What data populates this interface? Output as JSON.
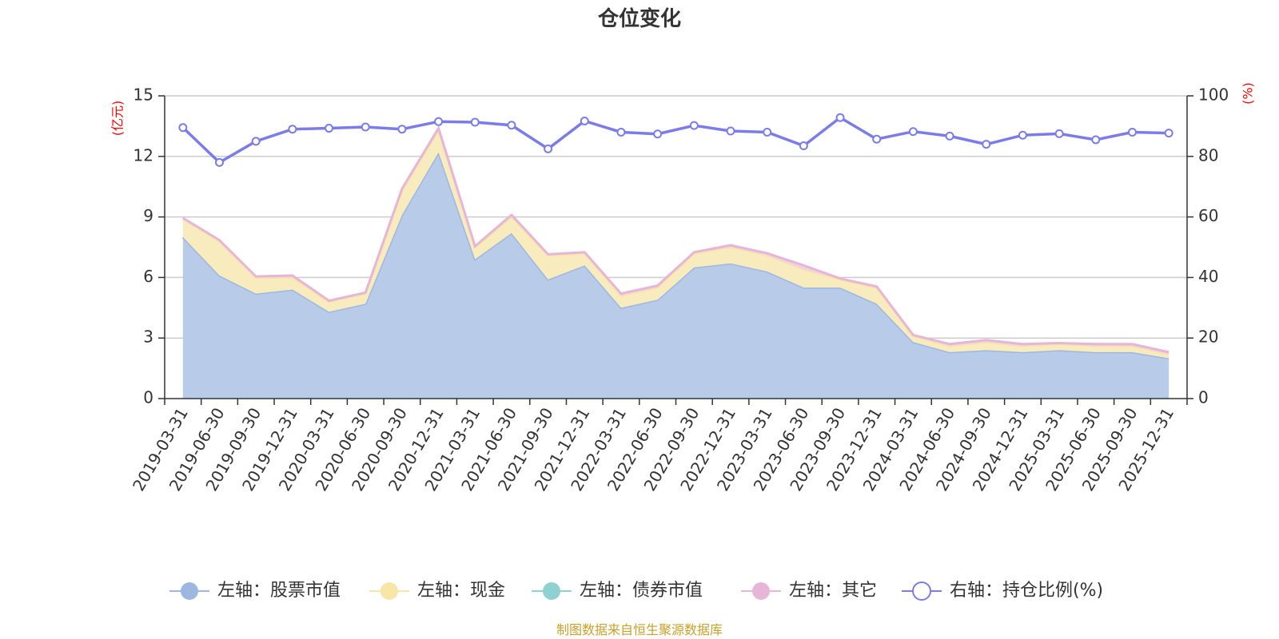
{
  "chart_data": {
    "type": "area",
    "title": "仓位变化",
    "left_unit": "(亿元)",
    "right_unit": "(%)",
    "left_ylim": [
      0,
      15
    ],
    "left_ticks": [
      "0",
      "3",
      "6",
      "9",
      "12",
      "15"
    ],
    "right_ylim": [
      0,
      100
    ],
    "right_ticks": [
      "0",
      "20",
      "40",
      "60",
      "80",
      "100"
    ],
    "categories": [
      "2019-03-31",
      "2019-06-30",
      "2019-09-30",
      "2019-12-31",
      "2020-03-31",
      "2020-06-30",
      "2020-09-30",
      "2020-12-31",
      "2021-03-31",
      "2021-06-30",
      "2021-09-30",
      "2021-12-31",
      "2022-03-31",
      "2022-06-30",
      "2022-09-30",
      "2022-12-31",
      "2023-03-31",
      "2023-06-30",
      "2023-09-30",
      "2023-12-31",
      "2024-03-31",
      "2024-06-30",
      "2024-09-30",
      "2024-12-31",
      "2025-03-31",
      "2025-06-30",
      "2025-09-30",
      "2025-12-31"
    ],
    "series": [
      {
        "name": "左轴：股票市值",
        "axis": "left",
        "stack": true,
        "color": "#9db8e0",
        "fill": "#b8cbe9",
        "values": [
          8.0,
          6.1,
          5.2,
          5.4,
          4.3,
          4.7,
          9.1,
          12.2,
          6.9,
          8.2,
          5.9,
          6.6,
          4.5,
          4.9,
          6.5,
          6.7,
          6.3,
          5.5,
          5.5,
          4.7,
          2.8,
          2.3,
          2.4,
          2.3,
          2.4,
          2.3,
          2.3,
          2.0
        ]
      },
      {
        "name": "左轴：现金",
        "axis": "left",
        "stack": true,
        "color": "#f7e6a6",
        "fill": "#f8ebbe",
        "values": [
          0.9,
          1.7,
          0.8,
          0.6,
          0.5,
          0.5,
          1.2,
          1.1,
          0.6,
          0.8,
          1.2,
          0.6,
          0.6,
          0.6,
          0.7,
          0.8,
          0.8,
          0.9,
          0.4,
          0.8,
          0.3,
          0.3,
          0.4,
          0.3,
          0.3,
          0.3,
          0.3,
          0.2
        ]
      },
      {
        "name": "左轴：债券市值",
        "axis": "left",
        "stack": true,
        "color": "#8fd1d1",
        "fill": "#b5e2e2",
        "values": [
          0,
          0,
          0,
          0,
          0,
          0,
          0,
          0,
          0,
          0,
          0,
          0,
          0,
          0,
          0,
          0,
          0,
          0,
          0,
          0,
          0,
          0,
          0,
          0,
          0,
          0,
          0,
          0
        ]
      },
      {
        "name": "左轴：其它",
        "axis": "left",
        "stack": true,
        "color": "#e6b5d8",
        "fill": "#f0d0e6",
        "values": [
          0.05,
          0.05,
          0.05,
          0.1,
          0.05,
          0.05,
          0.1,
          0.1,
          0.05,
          0.1,
          0.05,
          0.05,
          0.1,
          0.1,
          0.05,
          0.1,
          0.1,
          0.2,
          0.05,
          0.05,
          0.05,
          0.1,
          0.1,
          0.1,
          0.05,
          0.1,
          0.1,
          0.1
        ]
      },
      {
        "name": "右轴：持仓比例(%)",
        "axis": "right",
        "color": "#7b7bea",
        "values": [
          89.5,
          78.0,
          85.0,
          89.0,
          89.3,
          89.7,
          89.0,
          91.5,
          91.3,
          90.3,
          82.5,
          91.7,
          88.0,
          87.4,
          90.2,
          88.4,
          88.0,
          83.5,
          92.8,
          85.7,
          88.2,
          86.7,
          84.0,
          87.0,
          87.5,
          85.5,
          88.0,
          87.7
        ]
      }
    ],
    "legend_position": "bottom"
  },
  "legend_icons": [
    "circle-filled",
    "circle-filled",
    "circle-filled",
    "circle-filled",
    "circle-hollow"
  ],
  "source_text": "制图数据来自恒生聚源数据库"
}
